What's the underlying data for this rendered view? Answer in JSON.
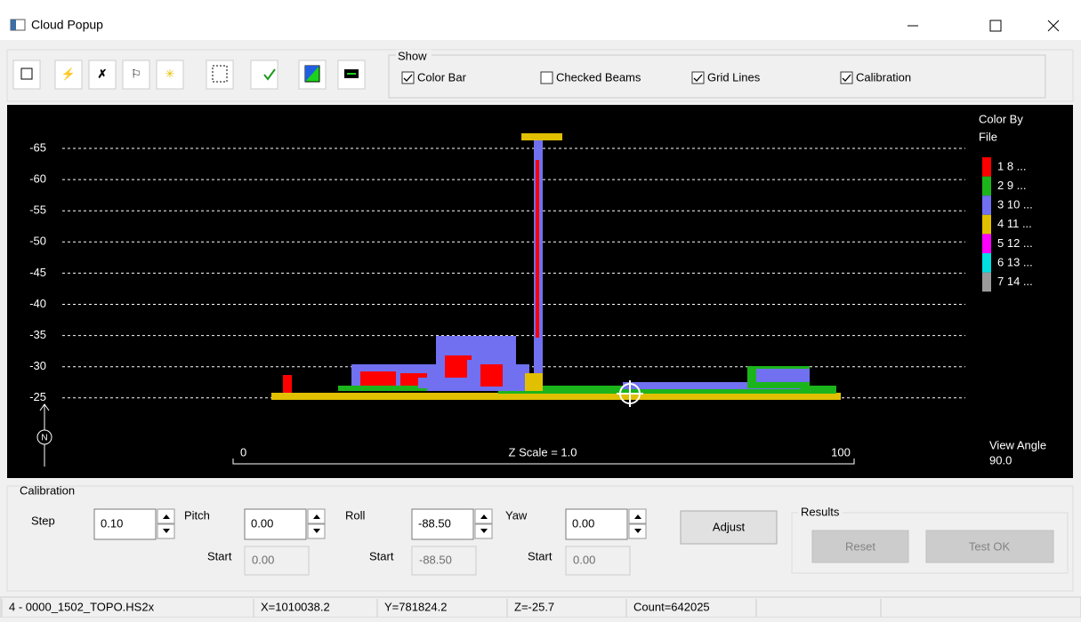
{
  "window": {
    "title": "Cloud Popup"
  },
  "show": {
    "label": "Show",
    "options": [
      {
        "label": "Color Bar",
        "checked": true
      },
      {
        "label": "Checked Beams",
        "checked": false
      },
      {
        "label": "Grid Lines",
        "checked": true
      },
      {
        "label": "Calibration",
        "checked": true
      }
    ]
  },
  "plot": {
    "y_labels": [
      "-65",
      "-60",
      "-55",
      "-50",
      "-45",
      "-40",
      "-35",
      "-30",
      "-25"
    ],
    "legend_title": "Color By\nFile",
    "legend": [
      "1 8 ...",
      "2 9 ...",
      "3 10 ...",
      "4 11 ...",
      "5 12 ...",
      "6 13 ...",
      "7 14 ..."
    ],
    "scale_start": "0",
    "scale_label": "Z Scale = 1.0",
    "scale_end": "100",
    "north": "N",
    "view_angle_label": "View Angle",
    "view_angle": "90.0"
  },
  "calibration": {
    "label": "Calibration",
    "fields": [
      {
        "label": "Step",
        "value": "0.10"
      },
      {
        "label": "Pitch",
        "value": "0.00",
        "start_label": "Start",
        "start": "0.00"
      },
      {
        "label": "Roll",
        "value": "-88.50",
        "start_label": "Start",
        "start": "-88.50"
      },
      {
        "label": "Yaw",
        "value": "0.00",
        "start_label": "Start",
        "start": "0.00"
      }
    ],
    "adjust": "Adjust",
    "results": {
      "label": "Results",
      "reset": "Reset",
      "test_ok": "Test OK"
    }
  },
  "status": [
    "4 - 0000_1502_TOPO.HS2x",
    "X=1010038.2",
    "Y=781824.2",
    "Z=-25.7",
    "Count=642025"
  ]
}
